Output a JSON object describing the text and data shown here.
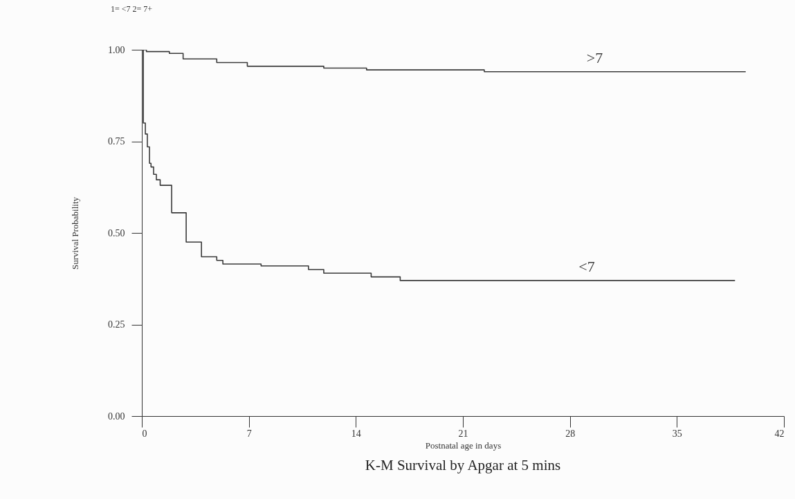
{
  "chart_data": {
    "type": "step",
    "title": "K-M Survival by Apgar at 5 mins",
    "xlabel": "Postnatal age in days",
    "ylabel": "Survival Probability",
    "annotations": [
      "1= <7 2= 7+"
    ],
    "xlim": [
      0,
      42
    ],
    "xticks": [
      0,
      7,
      14,
      21,
      28,
      35,
      42
    ],
    "ylim": [
      0,
      1
    ],
    "yticks": [
      {
        "value": 0,
        "label": "0.00"
      },
      {
        "value": 0.25,
        "label": "0.25"
      },
      {
        "value": 0.5,
        "label": "0.50"
      },
      {
        "value": 0.75,
        "label": "0.75"
      },
      {
        "value": 1,
        "label": "1.00"
      }
    ],
    "grid": false,
    "marker": "none",
    "line_style": "solid",
    "series": [
      {
        "name": "<7",
        "color": "#3a3a3a",
        "x": [
          0,
          0.1,
          0.23,
          0.36,
          0.5,
          0.6,
          0.77,
          0.95,
          1.2,
          1.95,
          2.9,
          3.9,
          4.9,
          5.3,
          7.8,
          10.9,
          11.9,
          15,
          16.9,
          38.8
        ],
        "values": [
          1,
          0.8,
          0.77,
          0.735,
          0.69,
          0.68,
          0.66,
          0.645,
          0.63,
          0.555,
          0.475,
          0.435,
          0.425,
          0.415,
          0.41,
          0.4,
          0.39,
          0.38,
          0.37,
          0.37
        ]
      },
      {
        "name": ">7",
        "color": "#3a3a3a",
        "x": [
          0,
          0.3,
          1.8,
          2.7,
          4.9,
          6.9,
          11.9,
          14.7,
          22.4,
          39.5
        ],
        "values": [
          1,
          0.995,
          0.99,
          0.975,
          0.965,
          0.955,
          0.95,
          0.945,
          0.94,
          0.94
        ]
      }
    ]
  }
}
